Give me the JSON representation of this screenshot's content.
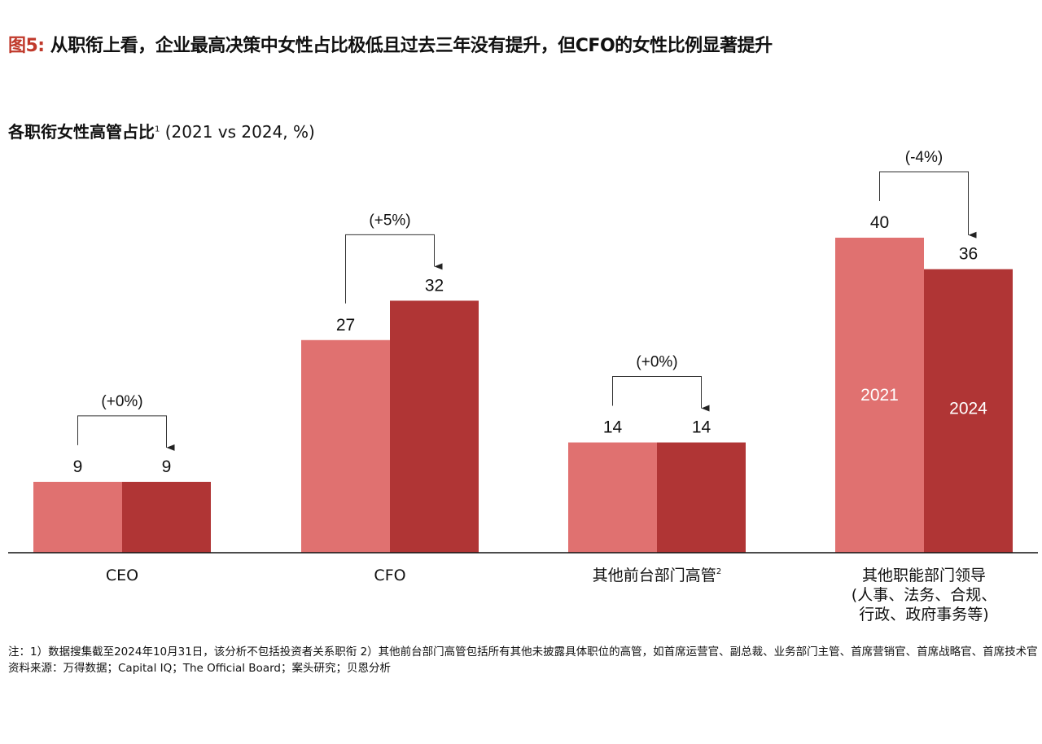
{
  "title": {
    "figure_label": "图5:",
    "text": " 从职衔上看，企业最高决策中女性占比极低且过去三年没有提升，但CFO的女性比例显著提升"
  },
  "chart_data": {
    "type": "bar",
    "title": "各职衔女性高管占比",
    "title_sup": "1",
    "title_unit": " (2021 vs 2024, %)",
    "categories": [
      {
        "lines": [
          "CEO"
        ],
        "sup": ""
      },
      {
        "lines": [
          "CFO"
        ],
        "sup": ""
      },
      {
        "lines": [
          "其他前台部门高管"
        ],
        "sup": "2"
      },
      {
        "lines": [
          "其他职能部门领导",
          "(人事、法务、合规、",
          "行政、政府事务等)"
        ],
        "sup": ""
      }
    ],
    "series": [
      {
        "name": "2021",
        "values": [
          9,
          27,
          14,
          40
        ],
        "color": "#e07170"
      },
      {
        "name": "2024",
        "values": [
          9,
          32,
          14,
          36
        ],
        "color": "#b03535"
      }
    ],
    "changes": [
      "(+0%)",
      "(+5%)",
      "(+0%)",
      "(-4%)"
    ],
    "legend_placement": "inside last category bars",
    "ylim": [
      0,
      45
    ],
    "grid": false
  },
  "notes": {
    "note": "注：1）数据搜集截至2024年10月31日，该分析不包括投资者关系职衔  2）其他前台部门高管包括所有其他未披露具体职位的高管，如首席运营官、副总裁、业务部门主管、首席营销官、首席战略官、首席技术官",
    "source": "资料来源：万得数据；Capital IQ；The Official Board；案头研究；贝恩分析"
  }
}
